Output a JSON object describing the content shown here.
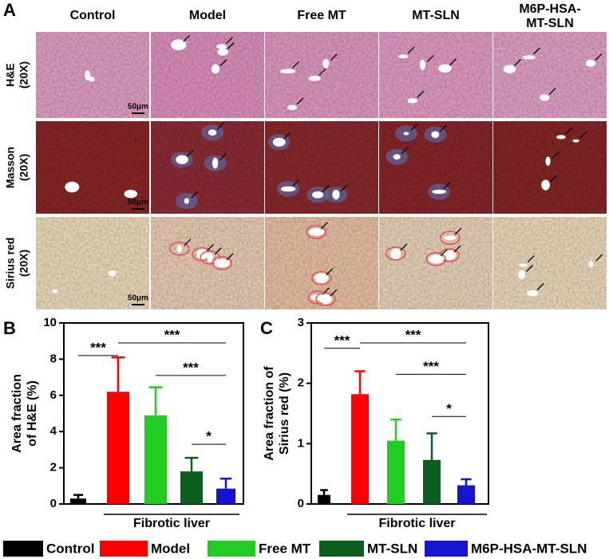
{
  "figure": {
    "panel_label": "A",
    "columns": [
      "Control",
      "Model",
      "Free MT",
      "MT-SLN",
      [
        "M6P-HSA-",
        "MT-SLN"
      ]
    ],
    "rows": [
      [
        "H&E",
        "(20X)"
      ],
      [
        "Masson",
        "(20X)"
      ],
      [
        "Sirius red",
        "(20X)"
      ]
    ],
    "scale_bar": "50μm"
  },
  "legend": [
    {
      "name": "Control",
      "color": "#000000"
    },
    {
      "name": "Model",
      "color": "#ff0000"
    },
    {
      "name": "Free MT",
      "color": "#22cc22"
    },
    {
      "name": "MT-SLN",
      "color": "#0b5e1c"
    },
    {
      "name": "M6P-HSA-MT-SLN",
      "color": "#1414d2"
    }
  ],
  "chart_data": [
    {
      "type": "bar",
      "panel_label": "B",
      "ylabel": [
        "Area fraction",
        "of H&E (%)"
      ],
      "values": [
        0.3,
        6.2,
        4.9,
        1.8,
        0.85
      ],
      "errors": [
        0.2,
        1.9,
        1.55,
        0.75,
        0.55
      ],
      "ylim": [
        0,
        10
      ],
      "yticks": [
        0,
        2,
        4,
        6,
        8,
        10
      ],
      "annotations": [
        "***",
        "***",
        "***",
        "*"
      ],
      "xlabel": "Fibrotic liver"
    },
    {
      "type": "bar",
      "panel_label": "C",
      "ylabel": [
        "Area fraction of",
        "Sirius red  (%)"
      ],
      "values": [
        0.15,
        1.82,
        1.05,
        0.73,
        0.31
      ],
      "errors": [
        0.08,
        0.38,
        0.35,
        0.44,
        0.1
      ],
      "ylim": [
        0,
        3
      ],
      "yticks": [
        0,
        1,
        2,
        3
      ],
      "annotations": [
        "***",
        "***",
        "***",
        "*"
      ],
      "xlabel": "Fibrotic liver"
    }
  ]
}
